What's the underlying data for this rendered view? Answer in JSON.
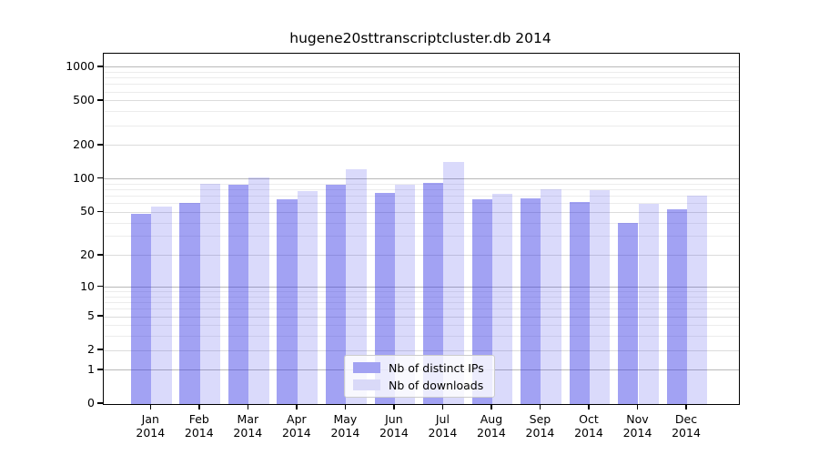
{
  "chart_data": {
    "type": "bar",
    "title": "hugene20sttranscriptcluster.db 2014",
    "categories": [
      "Jan 2014",
      "Feb 2014",
      "Mar 2014",
      "Apr 2014",
      "May 2014",
      "Jun 2014",
      "Jul 2014",
      "Aug 2014",
      "Sep 2014",
      "Oct 2014",
      "Nov 2014",
      "Dec 2014"
    ],
    "series": [
      {
        "name": "Nb of distinct IPs",
        "color": "#a2a2f2",
        "values": [
          48,
          61,
          88,
          66,
          88,
          75,
          93,
          66,
          67,
          62,
          40,
          53
        ]
      },
      {
        "name": "Nb of downloads",
        "color": "#d9d9f8",
        "values": [
          56,
          90,
          104,
          78,
          122,
          89,
          143,
          74,
          81,
          79,
          60,
          71
        ]
      }
    ],
    "xlabel": "",
    "ylabel": "",
    "y_axis": {
      "scale": "log1p",
      "ticks": [
        0,
        1,
        2,
        5,
        10,
        20,
        50,
        100,
        200,
        500,
        1000
      ],
      "decade_ticks": [
        1,
        10,
        100,
        1000
      ],
      "minor_gridlines": [
        3,
        4,
        6,
        7,
        8,
        9,
        30,
        40,
        60,
        70,
        80,
        90,
        300,
        400,
        600,
        700,
        800,
        900
      ],
      "range": [
        0,
        1318
      ]
    },
    "grid": true,
    "legend": {
      "position": "lower-center",
      "entries": [
        "Nb of distinct IPs",
        "Nb of downloads"
      ]
    }
  }
}
